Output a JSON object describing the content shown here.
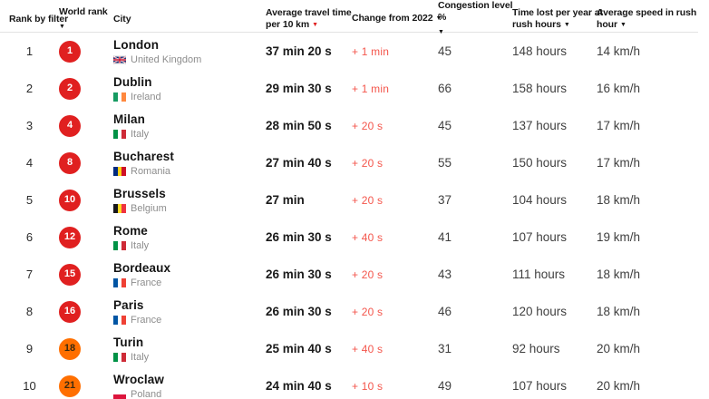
{
  "palette": {
    "badge_red": "#e02020",
    "badge_orange": "#ff6f00",
    "badge_text_light": "#ffffff",
    "badge_text_dark": "#3a2a10",
    "change_text": "#f4564c",
    "active_sort_arrow": "#e02020",
    "header_divider": "#e3e3e3"
  },
  "icons": {
    "sort_arrow": "▼"
  },
  "flags": {
    "uk": {
      "type": "uk"
    },
    "ireland": {
      "type": "vertical",
      "colors": [
        "#169b62",
        "#ffffff",
        "#ff883e"
      ]
    },
    "italy": {
      "type": "vertical",
      "colors": [
        "#009246",
        "#ffffff",
        "#ce2b37"
      ]
    },
    "romania": {
      "type": "vertical",
      "colors": [
        "#002b7f",
        "#fcd116",
        "#ce1126"
      ]
    },
    "belgium": {
      "type": "vertical",
      "colors": [
        "#17171c",
        "#fdda24",
        "#ef3340"
      ]
    },
    "france": {
      "type": "vertical",
      "colors": [
        "#0055a4",
        "#ffffff",
        "#ef4135"
      ]
    },
    "poland": {
      "type": "horizontal",
      "colors": [
        "#ffffff",
        "#dc143c"
      ]
    }
  },
  "chart_data": {
    "type": "table",
    "columns": [
      {
        "text": "Rank by filter",
        "arrow": "none"
      },
      {
        "text": "World rank",
        "arrow": "block"
      },
      {
        "text": "City",
        "arrow": "none"
      },
      {
        "text": "Average travel time per 10 km",
        "arrow": "inline-red"
      },
      {
        "text": "Change from 2022",
        "arrow": "inline"
      },
      {
        "text": "Congestion level %",
        "arrow": "block"
      },
      {
        "text": "Time lost per year at rush hours",
        "arrow": "inline"
      },
      {
        "text": "Average speed in rush hour",
        "arrow": "inline"
      }
    ],
    "rows": [
      {
        "rank": "1",
        "world_rank": "1",
        "badge": "red",
        "city": "London",
        "country": "United Kingdom",
        "flag": "uk",
        "travel_time": "37 min 20 s",
        "change": "+ 1 min",
        "congestion": "45",
        "time_lost": "148 hours",
        "speed": "14 km/h"
      },
      {
        "rank": "2",
        "world_rank": "2",
        "badge": "red",
        "city": "Dublin",
        "country": "Ireland",
        "flag": "ireland",
        "travel_time": "29 min 30 s",
        "change": "+ 1 min",
        "congestion": "66",
        "time_lost": "158 hours",
        "speed": "16 km/h"
      },
      {
        "rank": "3",
        "world_rank": "4",
        "badge": "red",
        "city": "Milan",
        "country": "Italy",
        "flag": "italy",
        "travel_time": "28 min 50 s",
        "change": "+ 20 s",
        "congestion": "45",
        "time_lost": "137 hours",
        "speed": "17 km/h"
      },
      {
        "rank": "4",
        "world_rank": "8",
        "badge": "red",
        "city": "Bucharest",
        "country": "Romania",
        "flag": "romania",
        "travel_time": "27 min 40 s",
        "change": "+ 20 s",
        "congestion": "55",
        "time_lost": "150 hours",
        "speed": "17 km/h"
      },
      {
        "rank": "5",
        "world_rank": "10",
        "badge": "red",
        "city": "Brussels",
        "country": "Belgium",
        "flag": "belgium",
        "travel_time": "27 min",
        "change": "+ 20 s",
        "congestion": "37",
        "time_lost": "104 hours",
        "speed": "18 km/h"
      },
      {
        "rank": "6",
        "world_rank": "12",
        "badge": "red",
        "city": "Rome",
        "country": "Italy",
        "flag": "italy",
        "travel_time": "26 min 30 s",
        "change": "+ 40 s",
        "congestion": "41",
        "time_lost": "107 hours",
        "speed": "19 km/h"
      },
      {
        "rank": "7",
        "world_rank": "15",
        "badge": "red",
        "city": "Bordeaux",
        "country": "France",
        "flag": "france",
        "travel_time": "26 min 30 s",
        "change": "+ 20 s",
        "congestion": "43",
        "time_lost": "111 hours",
        "speed": "18 km/h"
      },
      {
        "rank": "8",
        "world_rank": "16",
        "badge": "red",
        "city": "Paris",
        "country": "France",
        "flag": "france",
        "travel_time": "26 min 30 s",
        "change": "+ 20 s",
        "congestion": "46",
        "time_lost": "120 hours",
        "speed": "18 km/h"
      },
      {
        "rank": "9",
        "world_rank": "18",
        "badge": "orange",
        "city": "Turin",
        "country": "Italy",
        "flag": "italy",
        "travel_time": "25 min 40 s",
        "change": "+ 40 s",
        "congestion": "31",
        "time_lost": "92 hours",
        "speed": "20 km/h"
      },
      {
        "rank": "10",
        "world_rank": "21",
        "badge": "orange",
        "city": "Wroclaw",
        "country": "Poland",
        "flag": "poland",
        "travel_time": "24 min 40 s",
        "change": "+ 10 s",
        "congestion": "49",
        "time_lost": "107 hours",
        "speed": "20 km/h"
      }
    ]
  }
}
